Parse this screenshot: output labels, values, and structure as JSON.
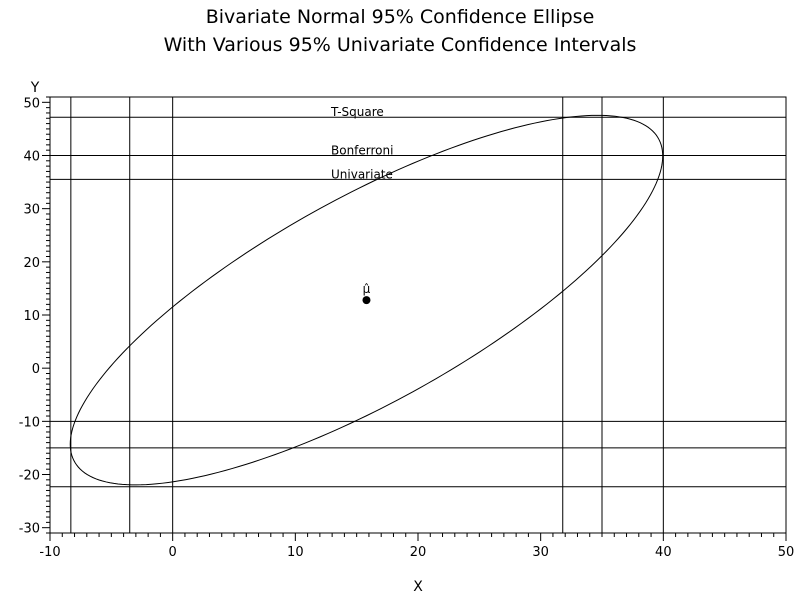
{
  "chart_data": {
    "type": "scatter",
    "title": "Bivariate Normal 95% Confidence Ellipse",
    "subtitle": "With Various 95% Univariate Confidence Intervals",
    "xlabel": "X",
    "ylabel": "Y",
    "xlim": [
      -10,
      50
    ],
    "ylim": [
      -31,
      51
    ],
    "x_ticks": [
      -10,
      0,
      10,
      20,
      30,
      40,
      50
    ],
    "y_ticks": [
      -30,
      -20,
      -10,
      0,
      10,
      20,
      30,
      40,
      50
    ],
    "x_tick_labels": [
      "-10",
      "0",
      "10",
      "20",
      "30",
      "40",
      "50"
    ],
    "y_tick_labels": [
      "-30",
      "-20",
      "-10",
      "0",
      "10",
      "20",
      "30",
      "40",
      "50"
    ],
    "grid": false,
    "ellipse": {
      "center": [
        15.8,
        12.8
      ],
      "x_extent": [
        -8.3,
        40.0
      ],
      "y_extent": [
        -22.3,
        47.2
      ],
      "correlation": 0.78
    },
    "mean_point": {
      "x": 15.8,
      "y": 12.8,
      "label": "μ̂"
    },
    "intervals": [
      {
        "name": "T-Square",
        "x": [
          -8.3,
          40.0
        ],
        "y": [
          -22.3,
          47.2
        ]
      },
      {
        "name": "Bonferroni",
        "x": [
          -3.5,
          35.0
        ],
        "y": [
          -15.0,
          40.0
        ]
      },
      {
        "name": "Univariate",
        "x": [
          0.0,
          31.8
        ],
        "y": [
          -10.0,
          35.5
        ]
      }
    ],
    "annotations": [
      "T-Square",
      "Bonferroni",
      "Univariate"
    ]
  }
}
